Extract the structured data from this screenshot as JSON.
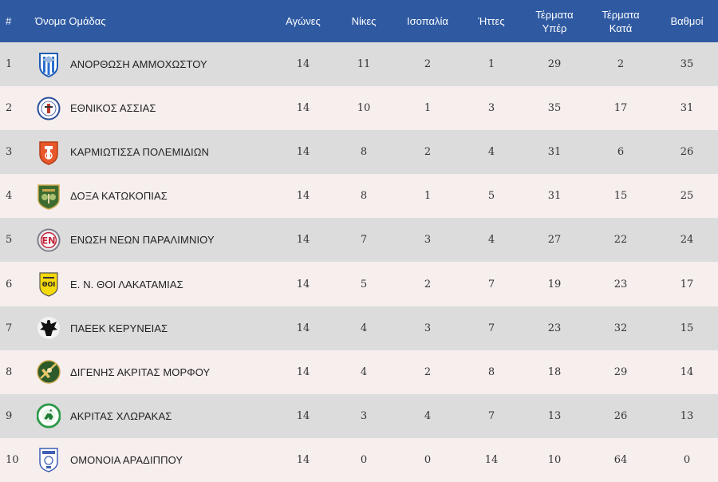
{
  "header": {
    "rank": "#",
    "team": "Όνομα Ομάδας",
    "played": "Αγώνες",
    "wins": "Νίκες",
    "draws": "Ισοπαλία",
    "losses": "Ήττες",
    "goals_for_1": "Τέρματα",
    "goals_for_2": "Υπέρ",
    "goals_against_1": "Τέρματα",
    "goals_against_2": "Κατά",
    "points": "Βαθμοί"
  },
  "rows": [
    {
      "rank": "1",
      "team": "ΑΝΟΡΘΩΣΗ ΑΜΜΟΧΩΣΤΟΥ",
      "logo": "anorthosis-logo",
      "played": "14",
      "wins": "11",
      "draws": "2",
      "losses": "1",
      "gf": "29",
      "ga": "2",
      "pts": "35"
    },
    {
      "rank": "2",
      "team": "ΕΘΝΙΚΟΣ ΑΣΣΙΑΣ",
      "logo": "ethnikos-assias-logo",
      "played": "14",
      "wins": "10",
      "draws": "1",
      "losses": "3",
      "gf": "35",
      "ga": "17",
      "pts": "31"
    },
    {
      "rank": "3",
      "team": "ΚΑΡΜΙΩΤΙΣΣΑ ΠΟΛΕΜΙΔΙΩΝ",
      "logo": "karmiotissa-logo",
      "played": "14",
      "wins": "8",
      "draws": "2",
      "losses": "4",
      "gf": "31",
      "ga": "6",
      "pts": "26"
    },
    {
      "rank": "4",
      "team": "ΔΟΞΑ ΚΑΤΩΚΟΠΙΑΣ",
      "logo": "doxa-logo",
      "played": "14",
      "wins": "8",
      "draws": "1",
      "losses": "5",
      "gf": "31",
      "ga": "15",
      "pts": "25"
    },
    {
      "rank": "5",
      "team": "ΕΝΩΣΗ ΝΕΩΝ ΠΑΡΑΛΙΜΝΙΟΥ",
      "logo": "enp-logo",
      "played": "14",
      "wins": "7",
      "draws": "3",
      "losses": "4",
      "gf": "27",
      "ga": "22",
      "pts": "24"
    },
    {
      "rank": "6",
      "team": "Ε. Ν. ΘΟΙ ΛΑΚΑΤΑΜΙΑΣ",
      "logo": "thoi-logo",
      "played": "14",
      "wins": "5",
      "draws": "2",
      "losses": "7",
      "gf": "19",
      "ga": "23",
      "pts": "17"
    },
    {
      "rank": "7",
      "team": "ΠΑΕΕΚ ΚΕΡΥΝΕΙΑΣ",
      "logo": "paeek-logo",
      "played": "14",
      "wins": "4",
      "draws": "3",
      "losses": "7",
      "gf": "23",
      "ga": "32",
      "pts": "15"
    },
    {
      "rank": "8",
      "team": "ΔΙΓΕΝΗΣ ΑΚΡΙΤΑΣ ΜΟΡΦΟΥ",
      "logo": "digenis-logo",
      "played": "14",
      "wins": "4",
      "draws": "2",
      "losses": "8",
      "gf": "18",
      "ga": "29",
      "pts": "14"
    },
    {
      "rank": "9",
      "team": "ΑΚΡΙΤΑΣ ΧΛΩΡΑΚΑΣ",
      "logo": "akritas-logo",
      "played": "14",
      "wins": "3",
      "draws": "4",
      "losses": "7",
      "gf": "13",
      "ga": "26",
      "pts": "13"
    },
    {
      "rank": "10",
      "team": "ΟΜΟΝΟΙΑ ΑΡΑΔΙΠΠΟΥ",
      "logo": "omonoia-aradippou-logo",
      "played": "14",
      "wins": "0",
      "draws": "0",
      "losses": "14",
      "gf": "10",
      "ga": "64",
      "pts": "0"
    }
  ],
  "colors": {
    "header_bg": "#2f5aa2",
    "row_odd": "#dcdcdc",
    "row_even": "#f7eeee"
  }
}
